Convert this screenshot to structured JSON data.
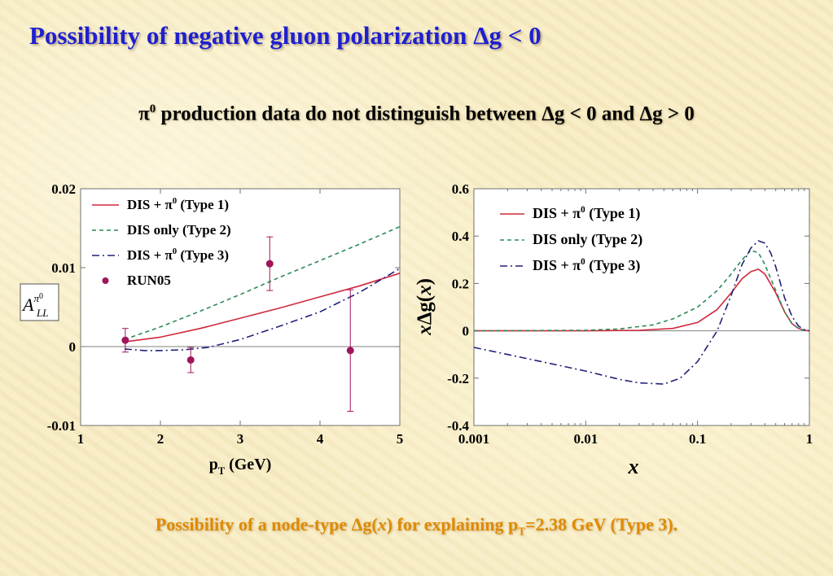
{
  "slide": {
    "title": "Possibility of negative gluon polarization Δg < 0",
    "subtitle": {
      "pre": "π",
      "sup": "0",
      "post": " production data do not distinguish between Δg < 0 and Δg > 0"
    },
    "caption": {
      "pre": "Possibility of a node-type Δg(",
      "x": "x",
      "mid": ") for explaining p",
      "sub": "T",
      "post": "=2.38 GeV (Type 3)."
    }
  },
  "colors": {
    "type1": "#d0283c",
    "type2": "#2a8a55",
    "type3": "#22227a",
    "run05": "#a0145a",
    "title": "#1f1fd0",
    "caption": "#e08a00"
  },
  "chart_data": [
    {
      "type": "line",
      "xlabel": "pT (GeV)",
      "ylabel": "A_LL^π0",
      "xlim": [
        1,
        5
      ],
      "ylim": [
        -0.01,
        0.02
      ],
      "x_ticks": [
        "1",
        "2",
        "3",
        "4",
        "5"
      ],
      "y_ticks": [
        "-0.01",
        "0",
        "0.01",
        "0.02"
      ],
      "zero_line": true,
      "legend": [
        "DIS + π0 (Type 1)",
        "DIS only (Type 2)",
        "DIS + π0 (Type 3)",
        "RUN05"
      ],
      "legend_position": "top-left",
      "series": [
        {
          "name": "DIS + π0 (Type 1)",
          "style": "solid",
          "color": "type1",
          "x": [
            1.55,
            2.0,
            2.5,
            3.0,
            3.5,
            4.0,
            4.5,
            5.0
          ],
          "y": [
            0.0006,
            0.0012,
            0.0023,
            0.0036,
            0.0049,
            0.0063,
            0.0077,
            0.0093
          ]
        },
        {
          "name": "DIS only (Type 2)",
          "style": "dashed",
          "color": "type2",
          "x": [
            1.55,
            2.0,
            2.5,
            3.0,
            3.5,
            4.0,
            4.5,
            5.0
          ],
          "y": [
            0.0009,
            0.0025,
            0.0045,
            0.0066,
            0.0088,
            0.0109,
            0.013,
            0.0152
          ]
        },
        {
          "name": "DIS + π0 (Type 3)",
          "style": "dashdot",
          "color": "type3",
          "x": [
            1.55,
            1.8,
            2.0,
            2.3,
            2.6,
            3.0,
            3.5,
            4.0,
            4.5,
            5.0
          ],
          "y": [
            -0.0003,
            -0.0005,
            -0.0005,
            -0.0004,
            -0.0001,
            0.0009,
            0.0026,
            0.0044,
            0.0069,
            0.0099
          ]
        }
      ],
      "points": {
        "name": "RUN05",
        "x": [
          1.56,
          2.38,
          3.37,
          4.38
        ],
        "y": [
          0.0008,
          -0.0017,
          0.0105,
          -0.0005
        ],
        "err": [
          0.0015,
          0.0016,
          0.0034,
          0.0077
        ]
      }
    },
    {
      "type": "line",
      "xlabel": "x",
      "ylabel": "xΔg(x)",
      "xscale": "log",
      "xlim": [
        0.001,
        1
      ],
      "ylim": [
        -0.4,
        0.6
      ],
      "x_ticks": [
        "0.001",
        "0.01",
        "0.1",
        "1"
      ],
      "y_ticks": [
        "-0.4",
        "-0.2",
        "0",
        "0.2",
        "0.4",
        "0.6"
      ],
      "zero_line": true,
      "legend": [
        "DIS + π0 (Type 1)",
        "DIS only (Type 2)",
        "DIS + π0 (Type 3)"
      ],
      "legend_position": "top-left",
      "series": [
        {
          "name": "DIS + π0 (Type 1)",
          "style": "solid",
          "color": "type1",
          "x": [
            0.001,
            0.01,
            0.03,
            0.06,
            0.1,
            0.15,
            0.2,
            0.25,
            0.3,
            0.35,
            0.4,
            0.5,
            0.6,
            0.7,
            0.8,
            0.9,
            1.0
          ],
          "y": [
            0.0,
            0.0,
            0.002,
            0.01,
            0.035,
            0.09,
            0.16,
            0.22,
            0.25,
            0.26,
            0.24,
            0.16,
            0.08,
            0.03,
            0.01,
            0.002,
            0.0
          ]
        },
        {
          "name": "DIS only (Type 2)",
          "style": "dashed",
          "color": "type2",
          "x": [
            0.001,
            0.01,
            0.02,
            0.04,
            0.06,
            0.1,
            0.15,
            0.2,
            0.25,
            0.3,
            0.35,
            0.4,
            0.5,
            0.6,
            0.7,
            0.8,
            0.9,
            1.0
          ],
          "y": [
            0.0,
            0.002,
            0.008,
            0.025,
            0.05,
            0.1,
            0.17,
            0.24,
            0.3,
            0.34,
            0.33,
            0.28,
            0.17,
            0.08,
            0.03,
            0.01,
            0.002,
            0.0
          ]
        },
        {
          "name": "DIS + π0 (Type 3)",
          "style": "dashdot",
          "color": "type3",
          "x": [
            0.001,
            0.002,
            0.005,
            0.01,
            0.02,
            0.03,
            0.05,
            0.07,
            0.1,
            0.15,
            0.2,
            0.25,
            0.3,
            0.35,
            0.4,
            0.45,
            0.5,
            0.6,
            0.7,
            0.8,
            0.9,
            1.0
          ],
          "y": [
            -0.07,
            -0.1,
            -0.14,
            -0.17,
            -0.205,
            -0.22,
            -0.225,
            -0.2,
            -0.13,
            0.0,
            0.15,
            0.28,
            0.35,
            0.38,
            0.37,
            0.33,
            0.27,
            0.14,
            0.06,
            0.02,
            0.005,
            0.0
          ]
        }
      ]
    }
  ]
}
